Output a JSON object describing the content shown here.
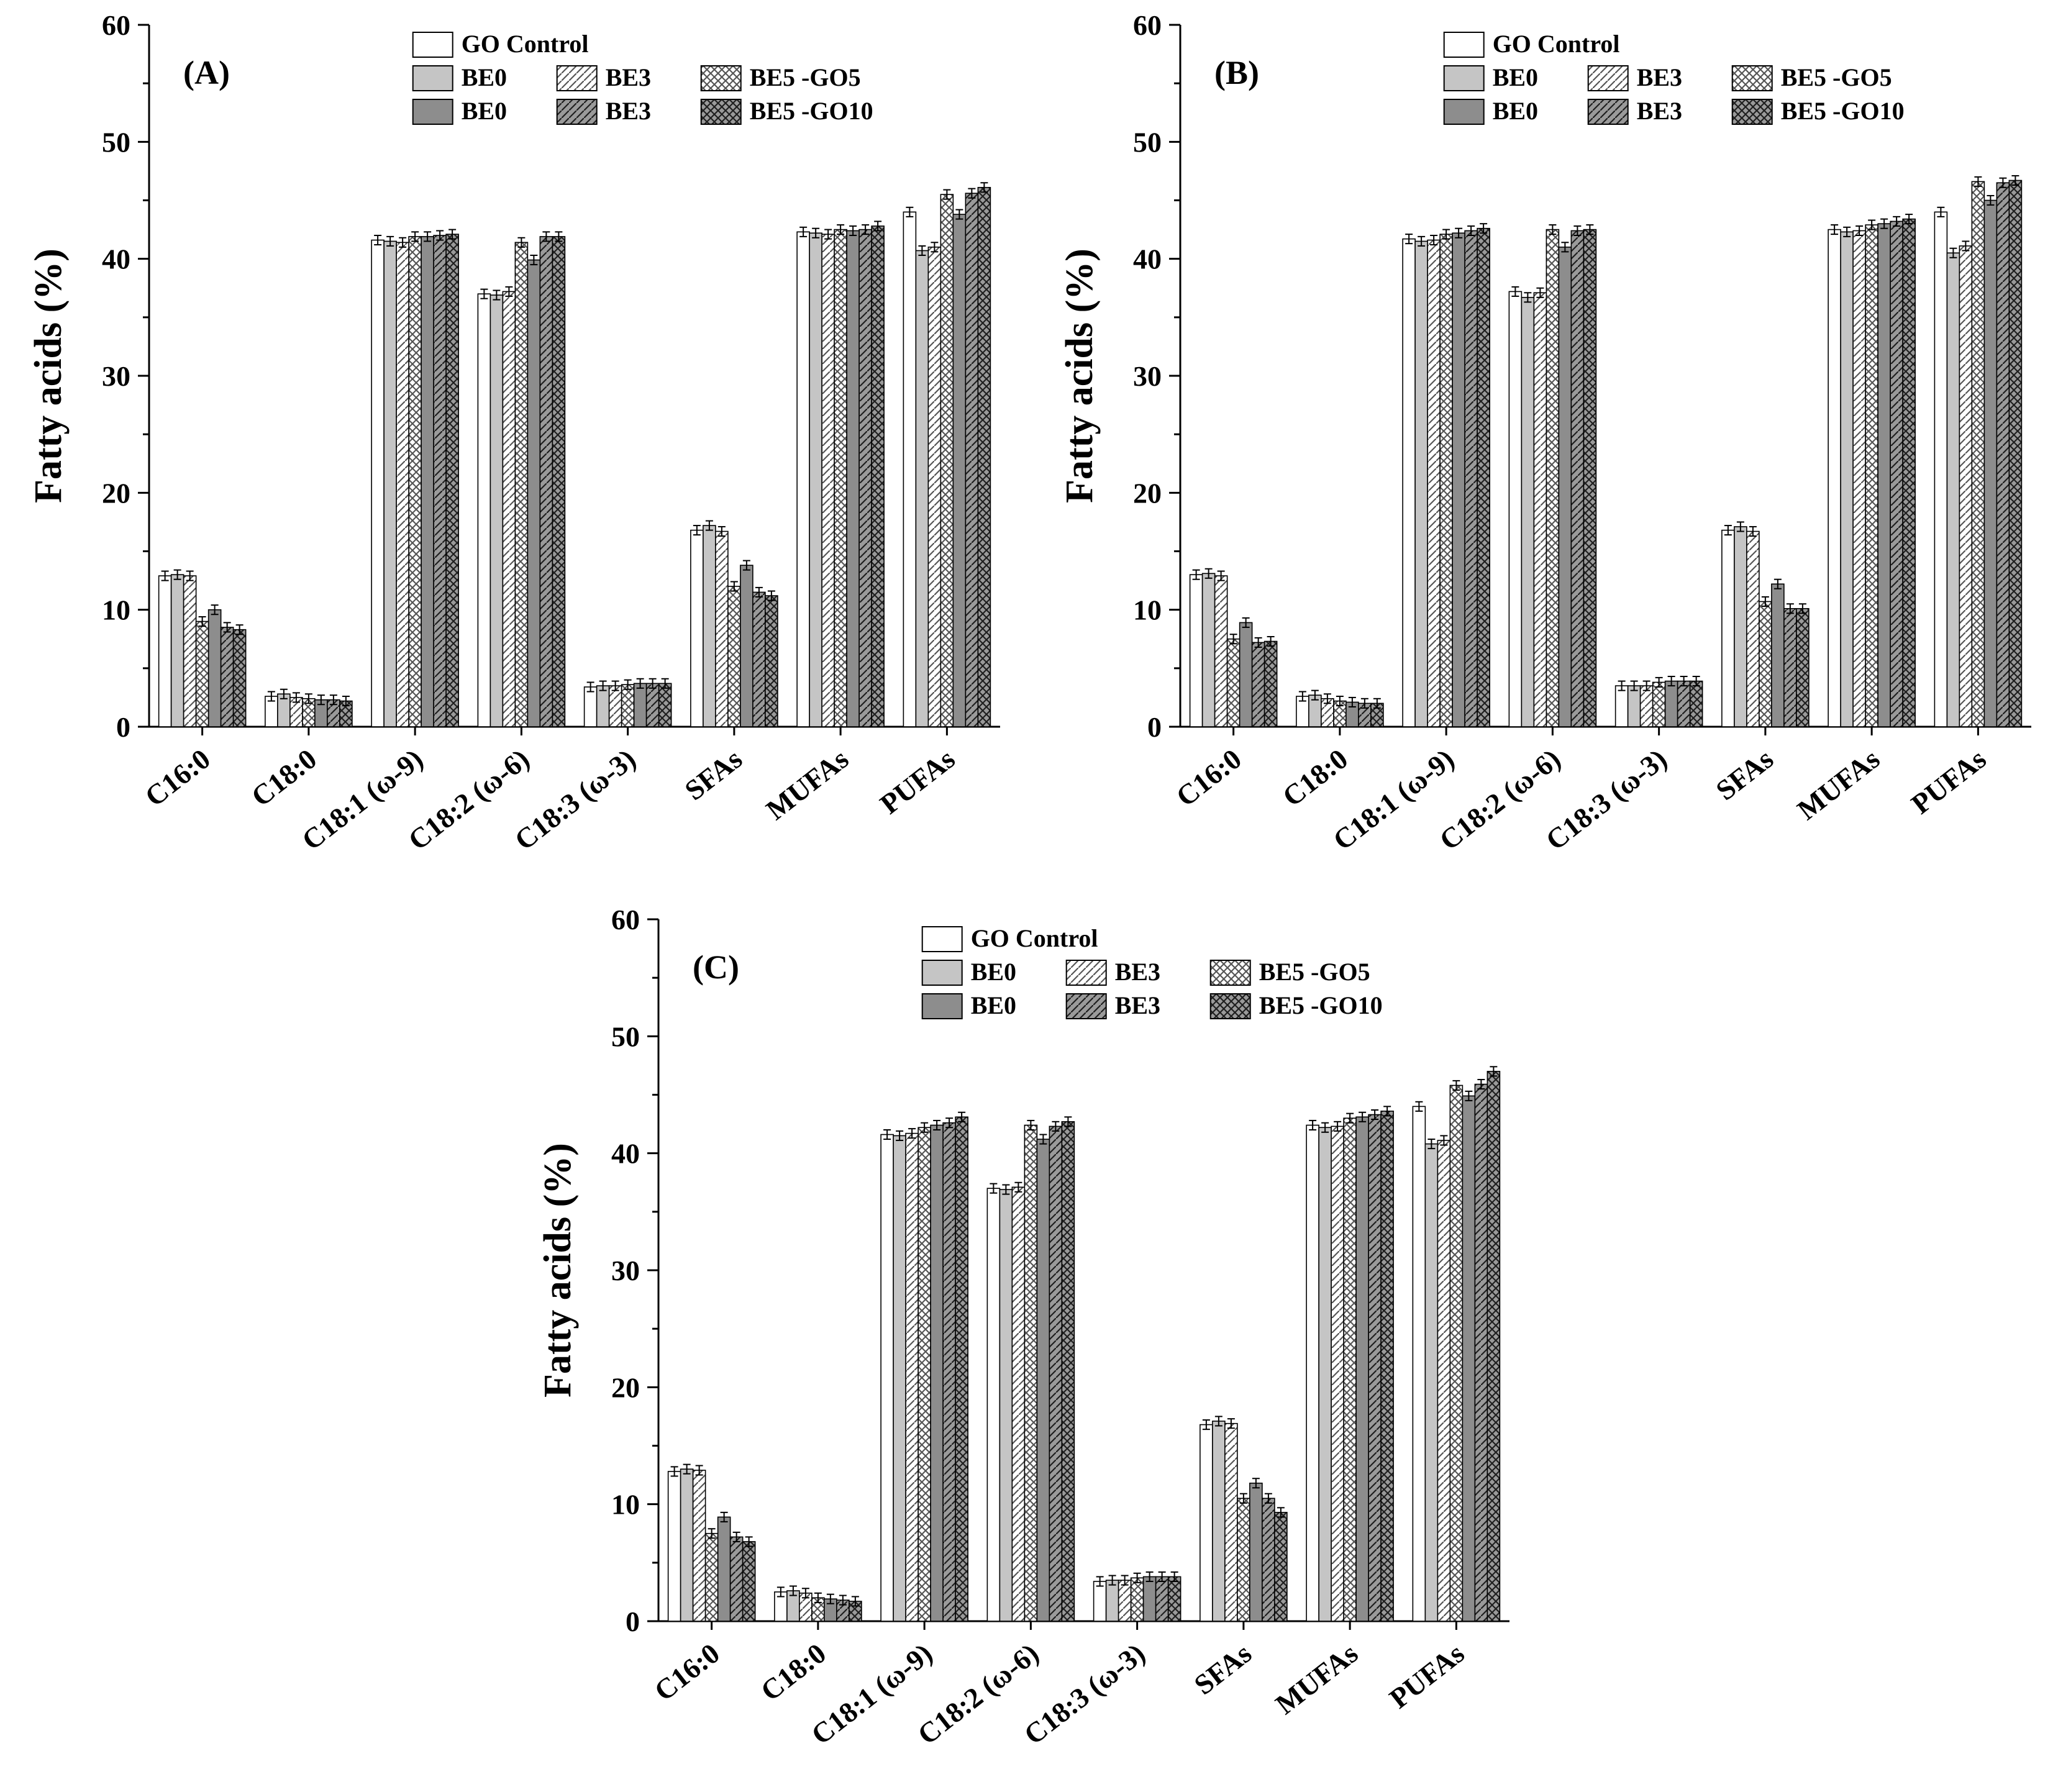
{
  "figure": {
    "background": "#ffffff",
    "ylabel": "Fatty acids (%)"
  },
  "colors": {
    "axis": "#000000",
    "bar_outline": "#000000",
    "white_fill": "#ffffff",
    "light_gray": "#c5c5c5",
    "dark_gray": "#8d8d8d",
    "pattern_light_bg": "#ffffff",
    "pattern_dark_bg": "#9a9a9a",
    "pattern_line_light": "#555555",
    "pattern_line_dark": "#1f1f1f"
  },
  "chart_data": [
    {
      "id": "A",
      "panel_label": "(A)",
      "type": "bar",
      "ylabel": "Fatty acids (%)",
      "ylim": [
        0,
        60
      ],
      "ytick_step": 10,
      "yminor_step": 5,
      "error_bar": 0.4,
      "legend_position": "top-inside",
      "grid": false,
      "categories": [
        "C16:0",
        "C18:0",
        "C18:1 (ω-9)",
        "C18:2 (ω-6)",
        "C18:3 (ω-3)",
        "SFAs",
        "MUFAs",
        "PUFAs"
      ],
      "series": [
        {
          "name": "GO Control",
          "style": "white",
          "values": [
            12.9,
            2.6,
            41.6,
            37.0,
            3.4,
            16.8,
            42.3,
            44.0
          ]
        },
        {
          "name": "BE0",
          "style": "solid-light",
          "values": [
            13.0,
            2.8,
            41.5,
            36.9,
            3.5,
            17.2,
            42.2,
            40.7
          ]
        },
        {
          "name": "BE3",
          "style": "diag-light",
          "values": [
            12.9,
            2.5,
            41.4,
            37.2,
            3.5,
            16.7,
            42.1,
            41.0
          ]
        },
        {
          "name": "BE5 -GO5",
          "style": "cross-light",
          "values": [
            9.0,
            2.4,
            41.9,
            41.4,
            3.6,
            12.0,
            42.5,
            45.5
          ]
        },
        {
          "name": "BE0",
          "style": "solid-dark",
          "values": [
            10.0,
            2.3,
            41.9,
            39.9,
            3.7,
            13.8,
            42.4,
            43.8
          ]
        },
        {
          "name": "BE3",
          "style": "diag-dark",
          "values": [
            8.5,
            2.3,
            42.0,
            41.9,
            3.7,
            11.5,
            42.5,
            45.6
          ]
        },
        {
          "name": "BE5 -GO10",
          "style": "cross-dark",
          "values": [
            8.3,
            2.2,
            42.1,
            41.9,
            3.7,
            11.2,
            42.8,
            46.1
          ]
        }
      ]
    },
    {
      "id": "B",
      "panel_label": "(B)",
      "type": "bar",
      "ylabel": "Fatty acids (%)",
      "ylim": [
        0,
        60
      ],
      "ytick_step": 10,
      "yminor_step": 5,
      "error_bar": 0.4,
      "legend_position": "top-inside",
      "grid": false,
      "categories": [
        "C16:0",
        "C18:0",
        "C18:1 (ω-9)",
        "C18:2 (ω-6)",
        "C18:3 (ω-3)",
        "SFAs",
        "MUFAs",
        "PUFAs"
      ],
      "series": [
        {
          "name": "GO Control",
          "style": "white",
          "values": [
            13.0,
            2.6,
            41.7,
            37.2,
            3.5,
            16.8,
            42.5,
            44.0
          ]
        },
        {
          "name": "BE0",
          "style": "solid-light",
          "values": [
            13.1,
            2.7,
            41.5,
            36.7,
            3.5,
            17.1,
            42.3,
            40.5
          ]
        },
        {
          "name": "BE3",
          "style": "diag-light",
          "values": [
            12.9,
            2.4,
            41.6,
            37.1,
            3.5,
            16.7,
            42.4,
            41.1
          ]
        },
        {
          "name": "BE5 -GO5",
          "style": "cross-light",
          "values": [
            7.5,
            2.2,
            42.1,
            42.5,
            3.8,
            10.7,
            42.9,
            46.6
          ]
        },
        {
          "name": "BE0",
          "style": "solid-dark",
          "values": [
            8.9,
            2.1,
            42.2,
            41.0,
            3.9,
            12.2,
            43.0,
            45.0
          ]
        },
        {
          "name": "BE3",
          "style": "diag-dark",
          "values": [
            7.2,
            2.0,
            42.4,
            42.4,
            3.9,
            10.1,
            43.2,
            46.5
          ]
        },
        {
          "name": "BE5 -GO10",
          "style": "cross-dark",
          "values": [
            7.3,
            2.0,
            42.6,
            42.5,
            3.9,
            10.1,
            43.4,
            46.7
          ]
        }
      ]
    },
    {
      "id": "C",
      "panel_label": "(C)",
      "type": "bar",
      "ylabel": "Fatty acids (%)",
      "ylim": [
        0,
        60
      ],
      "ytick_step": 10,
      "yminor_step": 5,
      "error_bar": 0.4,
      "legend_position": "top-inside",
      "grid": false,
      "categories": [
        "C16:0",
        "C18:0",
        "C18:1 (ω-9)",
        "C18:2 (ω-6)",
        "C18:3 (ω-3)",
        "SFAs",
        "MUFAs",
        "PUFAs"
      ],
      "series": [
        {
          "name": "GO Control",
          "style": "white",
          "values": [
            12.8,
            2.5,
            41.6,
            37.0,
            3.4,
            16.8,
            42.4,
            44.0
          ]
        },
        {
          "name": "BE0",
          "style": "solid-light",
          "values": [
            13.0,
            2.6,
            41.5,
            36.9,
            3.5,
            17.1,
            42.2,
            40.8
          ]
        },
        {
          "name": "BE3",
          "style": "diag-light",
          "values": [
            12.9,
            2.4,
            41.7,
            37.1,
            3.5,
            16.9,
            42.3,
            41.1
          ]
        },
        {
          "name": "BE5 -GO5",
          "style": "cross-light",
          "values": [
            7.5,
            2.0,
            42.2,
            42.4,
            3.7,
            10.5,
            43.0,
            45.8
          ]
        },
        {
          "name": "BE0",
          "style": "solid-dark",
          "values": [
            8.9,
            1.9,
            42.4,
            41.2,
            3.8,
            11.8,
            43.1,
            44.9
          ]
        },
        {
          "name": "BE3",
          "style": "diag-dark",
          "values": [
            7.2,
            1.8,
            42.6,
            42.3,
            3.8,
            10.5,
            43.3,
            45.9
          ]
        },
        {
          "name": "BE5 -GO10",
          "style": "cross-dark",
          "values": [
            6.8,
            1.7,
            43.1,
            42.7,
            3.8,
            9.3,
            43.6,
            47.0
          ]
        }
      ]
    }
  ]
}
